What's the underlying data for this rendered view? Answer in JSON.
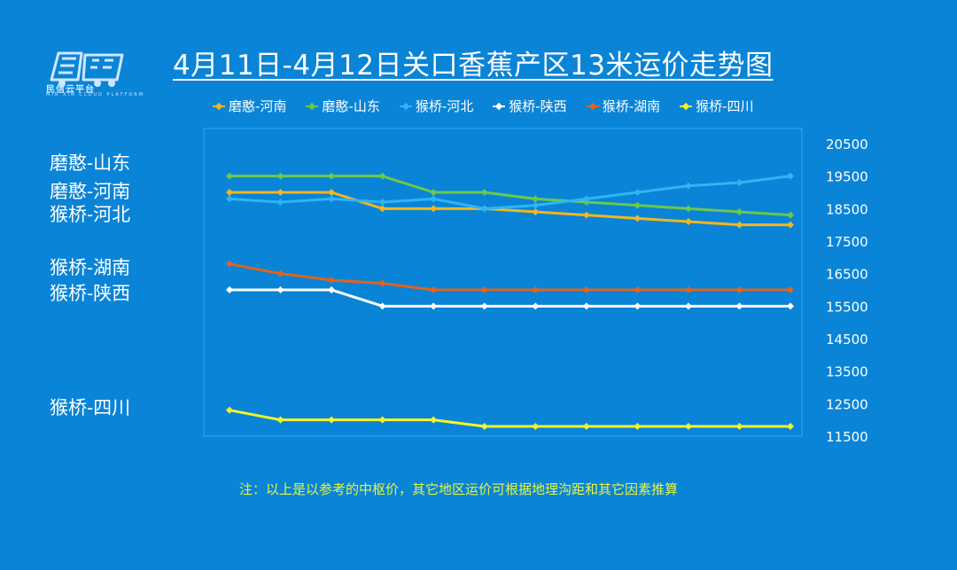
{
  "logo": {
    "name": "民信云平台",
    "sub": "MIN XIN CLOUD PLATFORM"
  },
  "colors": {
    "background": "#0a84d6",
    "plot_border": "#3aa6ee",
    "moheng_henan": "#f3b61f",
    "moheng_shandong": "#6cc84c",
    "houqiao_hebei": "#2eb5f5",
    "houqiao_shaanxi": "#ffffff",
    "houqiao_hunan": "#e0631e",
    "houqiao_sichuan": "#f4f42a"
  },
  "side_labels": [
    "磨憨-山东",
    "磨憨-河南",
    "猴桥-河北",
    "猴桥-湖南",
    "猴桥-陕西",
    "猴桥-四川"
  ],
  "note": "注：以上是以参考的中枢价，其它地区运价可根据地理沟距和其它因素推算",
  "chart_data": {
    "type": "line",
    "title": "4月11日-4月12日关口香蕉产区13米运价走势图",
    "xlabel": "",
    "ylabel": "",
    "ylim": [
      11500,
      20500
    ],
    "yticks": [
      11500,
      12500,
      13500,
      14500,
      15500,
      16500,
      17500,
      18500,
      19500,
      20500
    ],
    "y_axis_side": "right",
    "grid": false,
    "legend_position": "top",
    "x": [
      1,
      2,
      3,
      4,
      5,
      6,
      7,
      8,
      9,
      10,
      11,
      12
    ],
    "series": [
      {
        "name": "磨憨-河南",
        "color": "#f3b61f",
        "values": [
          19000,
          19000,
          19000,
          18500,
          18500,
          18500,
          18400,
          18300,
          18200,
          18100,
          18000,
          18000
        ]
      },
      {
        "name": "磨憨-山东",
        "color": "#6cc84c",
        "values": [
          19500,
          19500,
          19500,
          19500,
          19000,
          19000,
          18800,
          18700,
          18600,
          18500,
          18400,
          18300
        ]
      },
      {
        "name": "猴桥-河北",
        "color": "#2eb5f5",
        "values": [
          18800,
          18700,
          18800,
          18700,
          18800,
          18500,
          18600,
          18800,
          19000,
          19200,
          19300,
          19500
        ]
      },
      {
        "name": "猴桥-陕西",
        "color": "#ffffff",
        "values": [
          16000,
          16000,
          16000,
          15500,
          15500,
          15500,
          15500,
          15500,
          15500,
          15500,
          15500,
          15500
        ]
      },
      {
        "name": "猴桥-湖南",
        "color": "#e0631e",
        "values": [
          16800,
          16500,
          16300,
          16200,
          16000,
          16000,
          16000,
          16000,
          16000,
          16000,
          16000,
          16000
        ]
      },
      {
        "name": "猴桥-四川",
        "color": "#f4f42a",
        "values": [
          12300,
          12000,
          12000,
          12000,
          12000,
          11800,
          11800,
          11800,
          11800,
          11800,
          11800,
          11800
        ]
      }
    ]
  }
}
